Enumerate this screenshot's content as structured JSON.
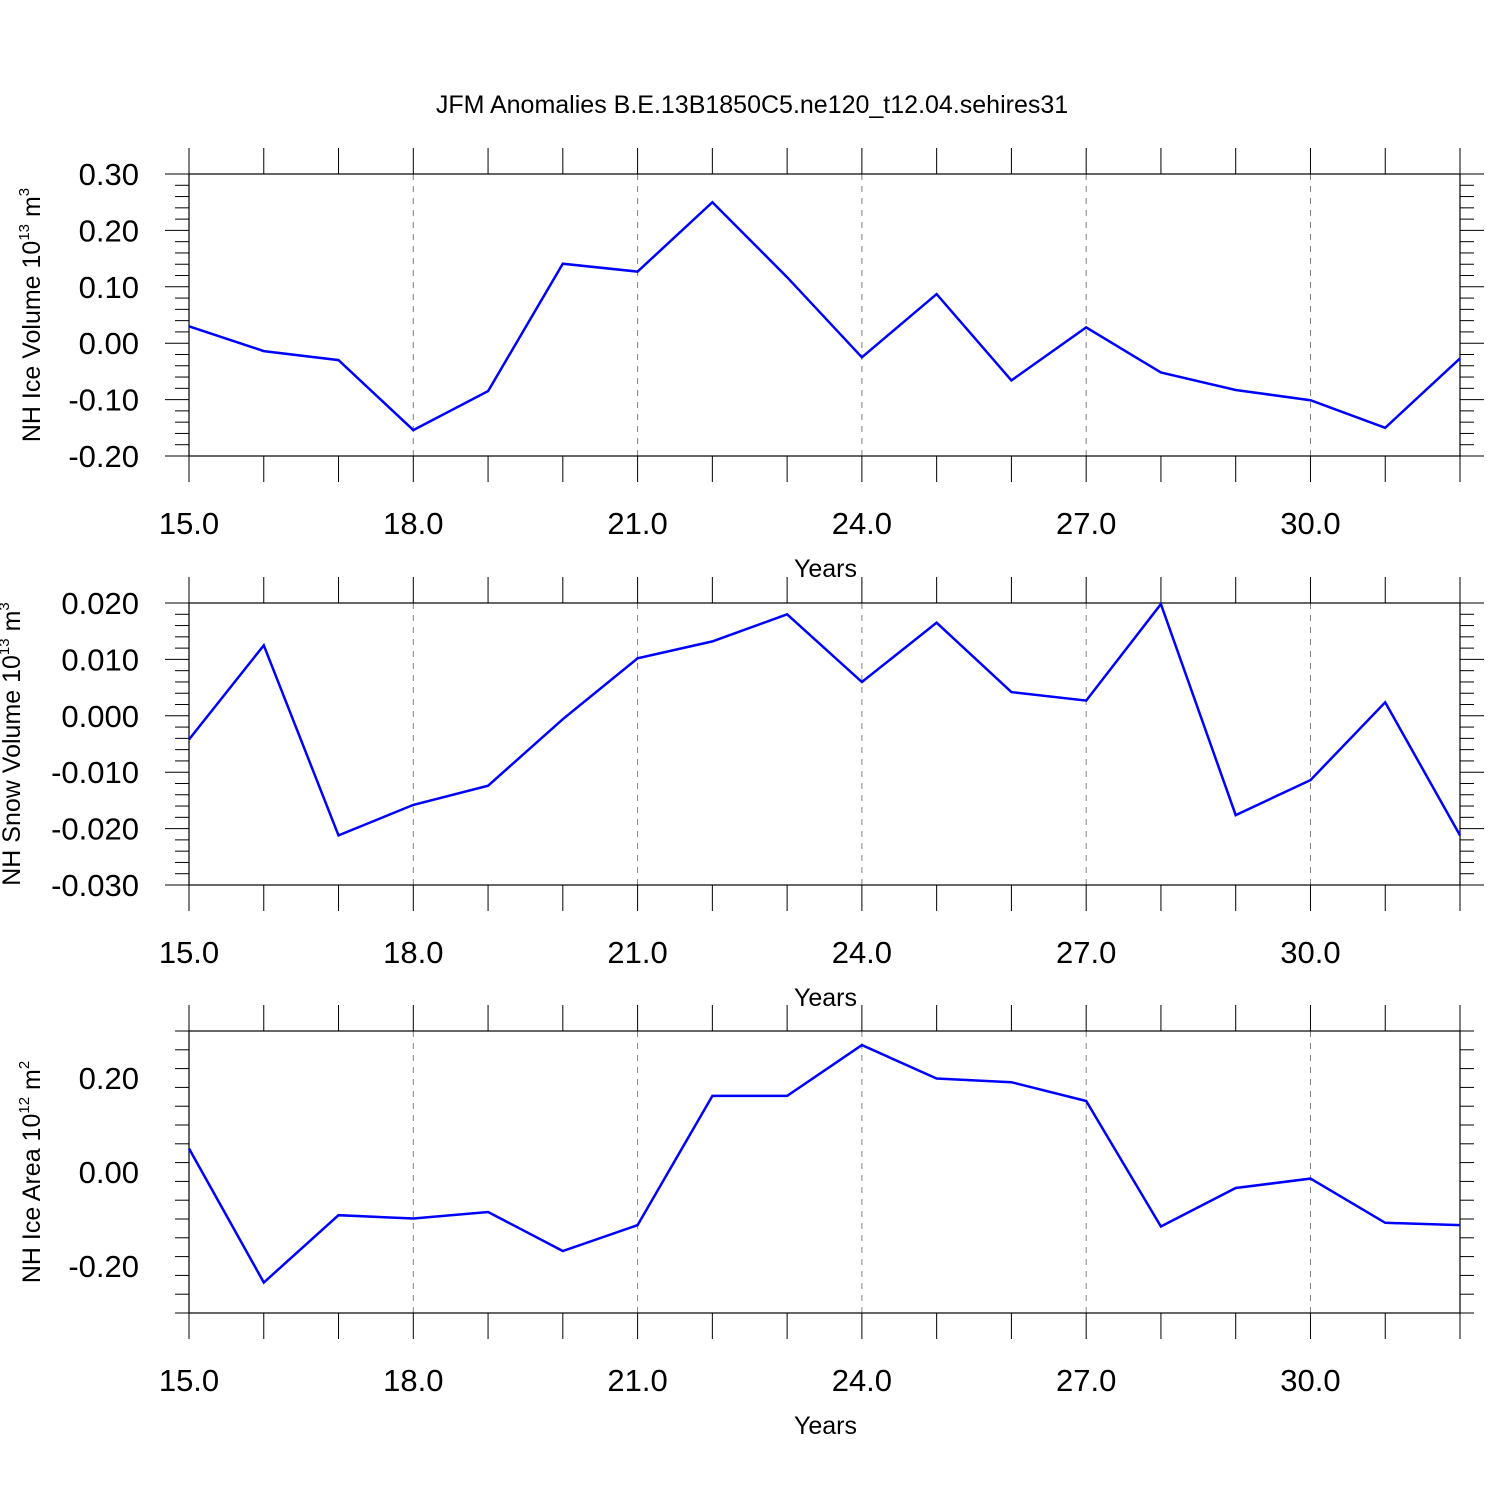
{
  "title": "JFM Anomalies B.E.13B1850C5.ne120_t12.04.sehires31",
  "colors": {
    "series": "#0000ff",
    "frame": "#000000",
    "grid": "#808080"
  },
  "chart_data": [
    {
      "type": "line",
      "title": "JFM Anomalies B.E.13B1850C5.ne120_t12.04.sehires31",
      "xlabel": "Years",
      "ylabel": {
        "main": "NH Ice Volume 10",
        "exp": "13",
        "unit": " m",
        "unit_exp": "3"
      },
      "xlim": [
        15,
        32
      ],
      "ylim": [
        -0.2,
        0.3
      ],
      "xticks": [
        15,
        18,
        21,
        24,
        27,
        30
      ],
      "xtick_labels": [
        "15.0",
        "18.0",
        "21.0",
        "24.0",
        "27.0",
        "30.0"
      ],
      "yticks": [
        -0.2,
        -0.1,
        0.0,
        0.1,
        0.2,
        0.3
      ],
      "ytick_labels": [
        "-0.20",
        "-0.10",
        "0.00",
        "0.10",
        "0.20",
        "0.30"
      ],
      "grid": "vertical dashed at major x ticks",
      "x": [
        15,
        16,
        17,
        18,
        19,
        20,
        21,
        22,
        23,
        24,
        25,
        26,
        27,
        28,
        29,
        30,
        31,
        32
      ],
      "values": [
        0.03,
        -0.014,
        -0.03,
        -0.154,
        -0.085,
        0.141,
        0.127,
        0.25,
        0.117,
        -0.025,
        0.087,
        -0.066,
        0.028,
        -0.052,
        -0.083,
        -0.101,
        -0.15,
        -0.027
      ]
    },
    {
      "type": "line",
      "xlabel": "Years",
      "ylabel": {
        "main": "NH Snow Volume 10",
        "exp": "13",
        "unit": " m",
        "unit_exp": "3"
      },
      "xlim": [
        15,
        32
      ],
      "ylim": [
        -0.03,
        0.02
      ],
      "xticks": [
        15,
        18,
        21,
        24,
        27,
        30
      ],
      "xtick_labels": [
        "15.0",
        "18.0",
        "21.0",
        "24.0",
        "27.0",
        "30.0"
      ],
      "yticks": [
        -0.03,
        -0.02,
        -0.01,
        0.0,
        0.01,
        0.02
      ],
      "ytick_labels": [
        "-0.030",
        "-0.020",
        "-0.010",
        "0.000",
        "0.010",
        "0.020"
      ],
      "grid": "vertical dashed at major x ticks",
      "x": [
        15,
        16,
        17,
        18,
        19,
        20,
        21,
        22,
        23,
        24,
        25,
        26,
        27,
        28,
        29,
        30,
        31,
        32
      ],
      "values": [
        -0.0042,
        0.0125,
        -0.0212,
        -0.0158,
        -0.0124,
        -0.0006,
        0.0102,
        0.0132,
        0.018,
        0.006,
        0.0165,
        0.0042,
        0.0027,
        0.0198,
        -0.0176,
        -0.0114,
        0.0024,
        -0.0212
      ]
    },
    {
      "type": "line",
      "xlabel": "Years",
      "ylabel": {
        "main": "NH Ice Area 10",
        "exp": "12",
        "unit": " m",
        "unit_exp": "2"
      },
      "xlim": [
        15,
        32
      ],
      "ylim": [
        -0.3,
        0.3
      ],
      "xticks": [
        15,
        18,
        21,
        24,
        27,
        30
      ],
      "xtick_labels": [
        "15.0",
        "18.0",
        "21.0",
        "24.0",
        "27.0",
        "30.0"
      ],
      "yticks": [
        -0.2,
        0.0,
        0.2
      ],
      "ytick_labels": [
        "-0.20",
        "0.00",
        "0.20"
      ],
      "grid": "vertical dashed at major x ticks",
      "x": [
        15,
        16,
        17,
        18,
        19,
        20,
        21,
        22,
        23,
        24,
        25,
        26,
        27,
        28,
        29,
        30,
        31,
        32
      ],
      "values": [
        0.05,
        -0.235,
        -0.092,
        -0.099,
        -0.085,
        -0.168,
        -0.113,
        0.162,
        0.162,
        0.27,
        0.199,
        0.191,
        0.151,
        -0.116,
        -0.034,
        -0.014,
        -0.108,
        -0.113
      ]
    }
  ]
}
